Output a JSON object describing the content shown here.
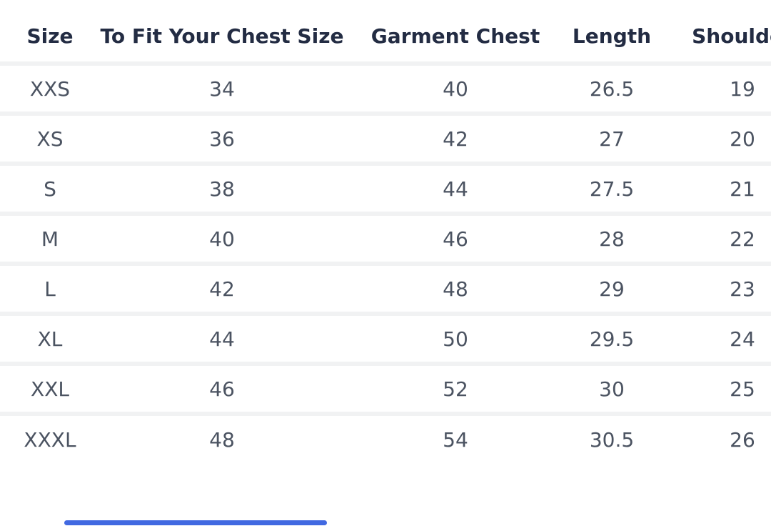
{
  "size_chart": {
    "columns": [
      "Size",
      "To Fit Your Chest Size",
      "Garment Chest",
      "Length",
      "Shoulder"
    ],
    "rows": [
      [
        "XXS",
        "34",
        "40",
        "26.5",
        "19"
      ],
      [
        "XS",
        "36",
        "42",
        "27",
        "20"
      ],
      [
        "S",
        "38",
        "44",
        "27.5",
        "21"
      ],
      [
        "M",
        "40",
        "46",
        "28",
        "22"
      ],
      [
        "L",
        "42",
        "48",
        "29",
        "23"
      ],
      [
        "XL",
        "44",
        "50",
        "29.5",
        "24"
      ],
      [
        "XXL",
        "46",
        "52",
        "30",
        "25"
      ],
      [
        "XXXL",
        "48",
        "54",
        "30.5",
        "26"
      ]
    ]
  },
  "colors": {
    "header_text": "#232c43",
    "body_text": "#4b5361",
    "row_separator": "#f1f2f3",
    "background": "#ffffff",
    "scrollbar_thumb": "#4169e1"
  },
  "scrollbar": {
    "orientation": "horizontal"
  }
}
